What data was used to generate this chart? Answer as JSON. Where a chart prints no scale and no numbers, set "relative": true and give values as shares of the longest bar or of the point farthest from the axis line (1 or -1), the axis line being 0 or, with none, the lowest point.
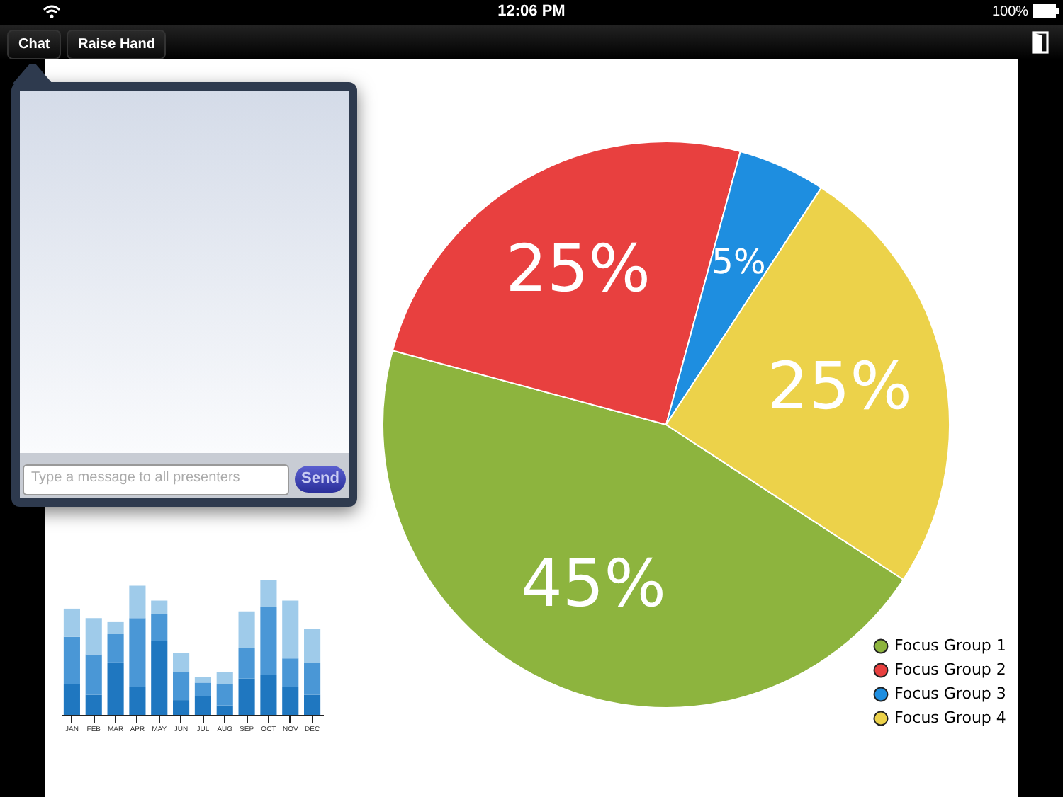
{
  "chart_data": [
    {
      "type": "pie",
      "categories": [
        "Focus Group 1",
        "Focus Group 2",
        "Focus Group 3",
        "Focus Group 4"
      ],
      "values": [
        45,
        25,
        5,
        25
      ],
      "colors": [
        "#8db43e",
        "#e8403f",
        "#1e8ee0",
        "#ecd24a"
      ],
      "value_labels": [
        "45%",
        "25%",
        "5%",
        "25%"
      ],
      "legend": "bottom right"
    },
    {
      "type": "bar",
      "stacked": true,
      "relative": true,
      "categories": [
        "JAN",
        "FEB",
        "MAR",
        "APR",
        "MAY",
        "JUN",
        "JUL",
        "AUG",
        "SEP",
        "OCT",
        "NOV",
        "DEC"
      ],
      "series": [
        {
          "color": "#1f77c0",
          "values": [
            0.23,
            0.15,
            0.39,
            0.21,
            0.55,
            0.11,
            0.14,
            0.07,
            0.27,
            0.3,
            0.21,
            0.15
          ]
        },
        {
          "color": "#4a97d6",
          "values": [
            0.35,
            0.3,
            0.21,
            0.51,
            0.2,
            0.21,
            0.1,
            0.16,
            0.23,
            0.5,
            0.21,
            0.24
          ]
        },
        {
          "color": "#9fcbea",
          "values": [
            0.21,
            0.27,
            0.09,
            0.24,
            0.1,
            0.14,
            0.04,
            0.09,
            0.27,
            0.2,
            0.43,
            0.25
          ]
        }
      ]
    },
    {
      "type": "other",
      "annotations": [
        "12:06 PM",
        "100%",
        "Chat",
        "Raise Hand",
        "Type a message to all presenters",
        "Send"
      ]
    }
  ]
}
